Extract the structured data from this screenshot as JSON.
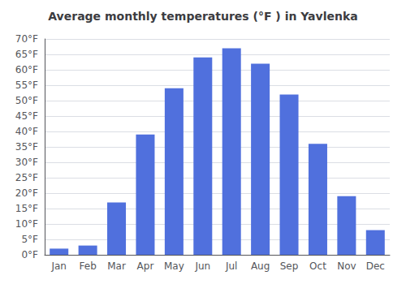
{
  "chart_data": {
    "type": "bar",
    "title": "Average monthly temperatures (°F ) in Yavlenka",
    "categories": [
      "Jan",
      "Feb",
      "Mar",
      "Apr",
      "May",
      "Jun",
      "Jul",
      "Aug",
      "Sep",
      "Oct",
      "Nov",
      "Dec"
    ],
    "values": [
      2,
      3,
      17,
      39,
      54,
      64,
      67,
      62,
      52,
      36,
      19,
      8
    ],
    "ylim": [
      0,
      70
    ],
    "yticks": [
      {
        "value": 0,
        "label": "0°F"
      },
      {
        "value": 5,
        "label": "5°F"
      },
      {
        "value": 10,
        "label": "10°F"
      },
      {
        "value": 15,
        "label": "15°F"
      },
      {
        "value": 20,
        "label": "20°F"
      },
      {
        "value": 25,
        "label": "25°F"
      },
      {
        "value": 30,
        "label": "30°F"
      },
      {
        "value": 35,
        "label": "35°F"
      },
      {
        "value": 40,
        "label": "40°F"
      },
      {
        "value": 45,
        "label": "45°F"
      },
      {
        "value": 50,
        "label": "50°F"
      },
      {
        "value": 55,
        "label": "55°F"
      },
      {
        "value": 60,
        "label": "60°F"
      },
      {
        "value": 65,
        "label": "65°F"
      },
      {
        "value": 70,
        "label": "70°F"
      }
    ],
    "grid": true
  }
}
